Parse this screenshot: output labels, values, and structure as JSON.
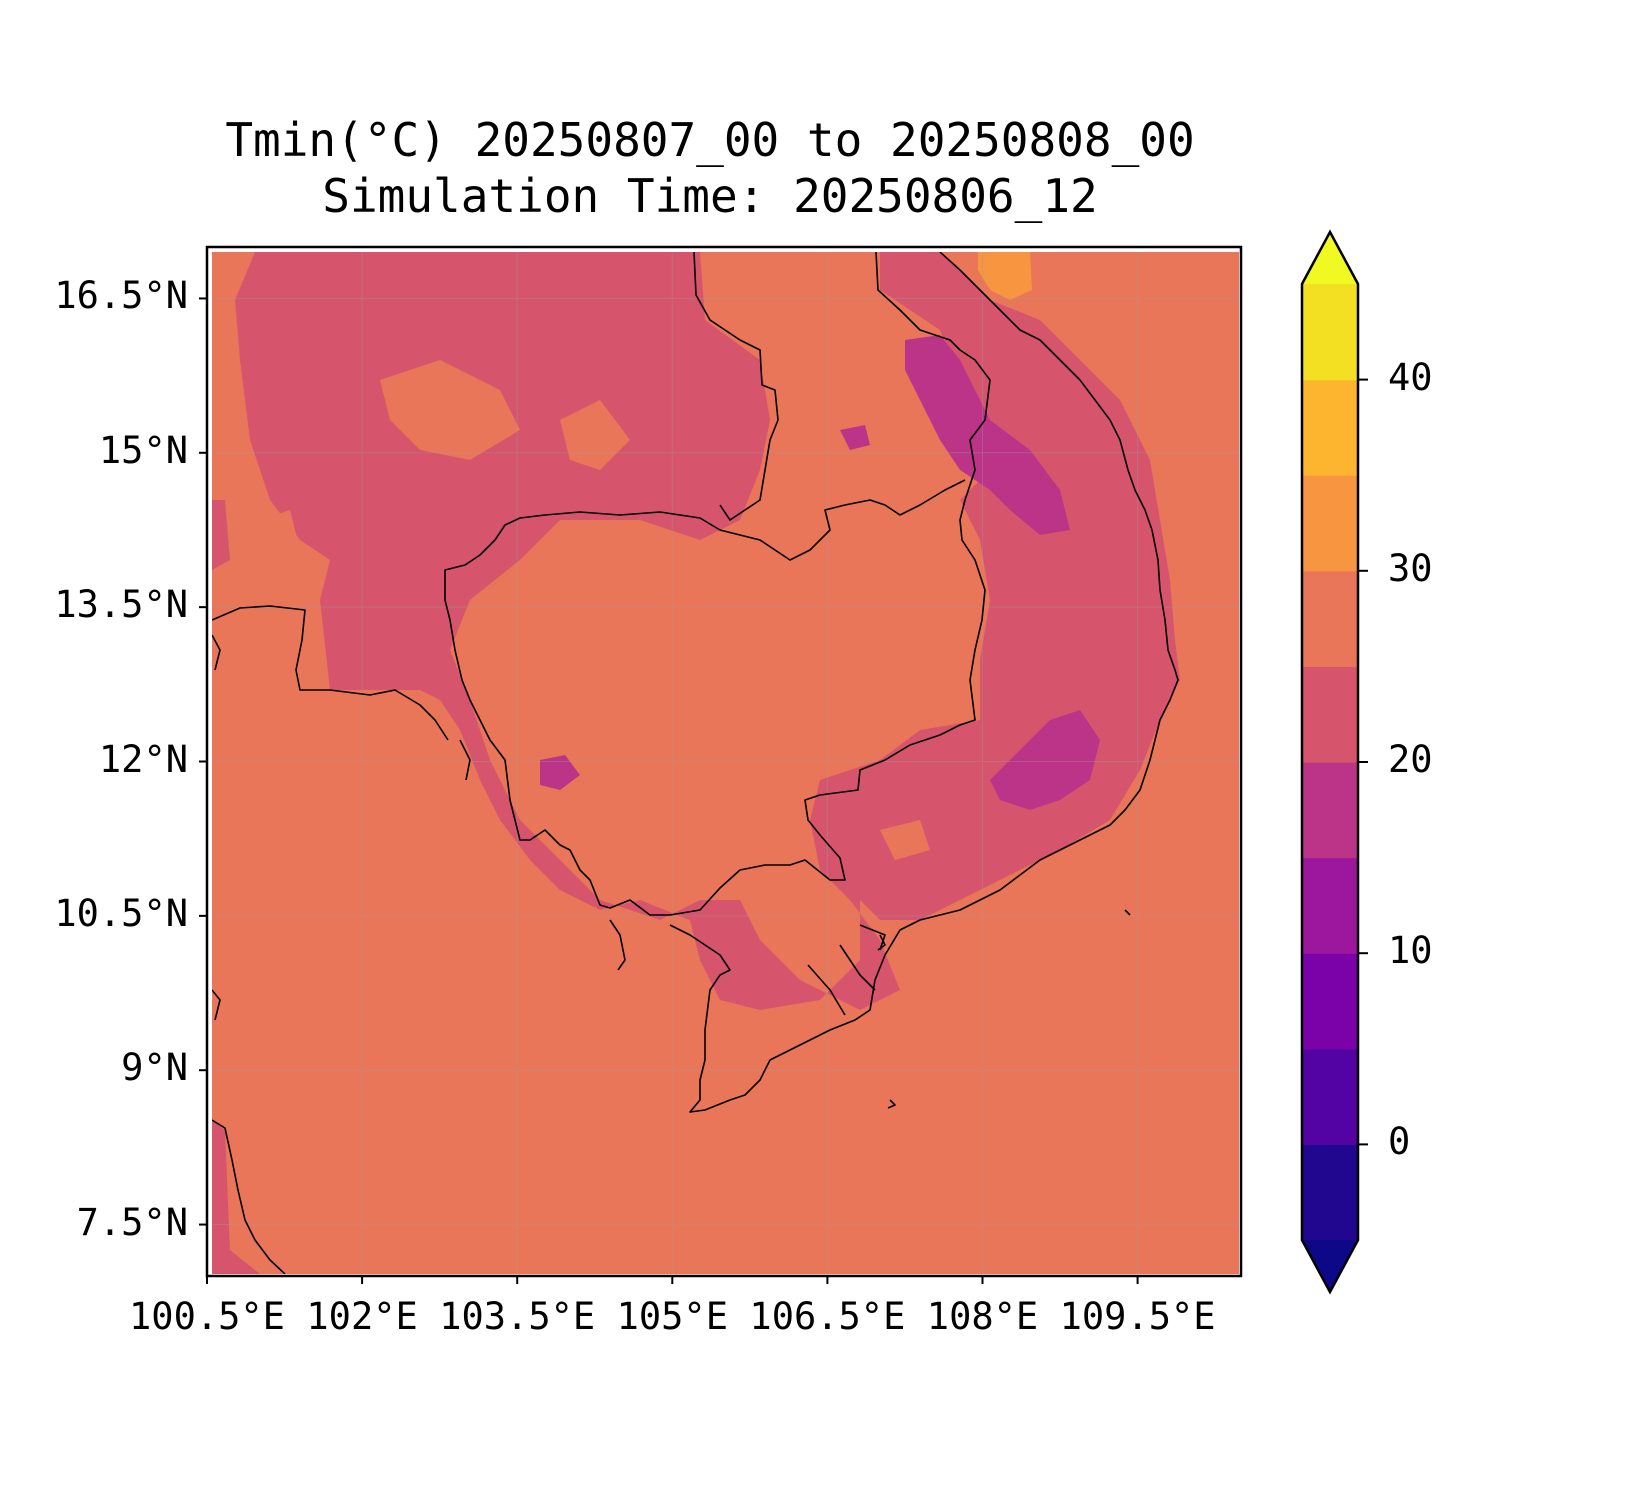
{
  "title": {
    "line1": "Tmin(°C) 20250807_00 to 20250808_00",
    "line2": "Simulation Time: 20250806_12"
  },
  "map": {
    "background_color": "#ea7659",
    "lat_ticks": [
      "16.5°N",
      "15°N",
      "13.5°N",
      "12°N",
      "10.5°N",
      "9°N",
      "7.5°N"
    ],
    "lon_ticks": [
      "100.5°E",
      "102°E",
      "103.5°E",
      "105°E",
      "106.5°E",
      "108°E",
      "109.5°E"
    ],
    "lat_values": [
      16.5,
      15,
      13.5,
      12,
      10.5,
      9,
      7.5
    ],
    "lon_values": [
      100.5,
      102,
      103.5,
      105,
      106.5,
      108,
      109.5
    ],
    "lat_range": [
      7.0,
      17.0
    ],
    "lon_range": [
      100.5,
      110.5
    ],
    "grid": true
  },
  "colorbar": {
    "ticks": [
      "0",
      "10",
      "20",
      "30",
      "40"
    ],
    "tick_values": [
      0,
      10,
      20,
      30,
      40
    ],
    "range": [
      -5,
      45
    ],
    "extend": "both",
    "levels": [
      -5,
      0,
      5,
      10,
      15,
      20,
      25,
      30,
      35,
      40,
      45
    ],
    "colors": [
      "#21078f",
      "#5302a3",
      "#7b02a8",
      "#9c179e",
      "#bc3488",
      "#d6556d",
      "#ea7659",
      "#f89540",
      "#fdb42f",
      "#f4e022"
    ],
    "under_color": "#0d0887",
    "over_color": "#f0f921"
  }
}
